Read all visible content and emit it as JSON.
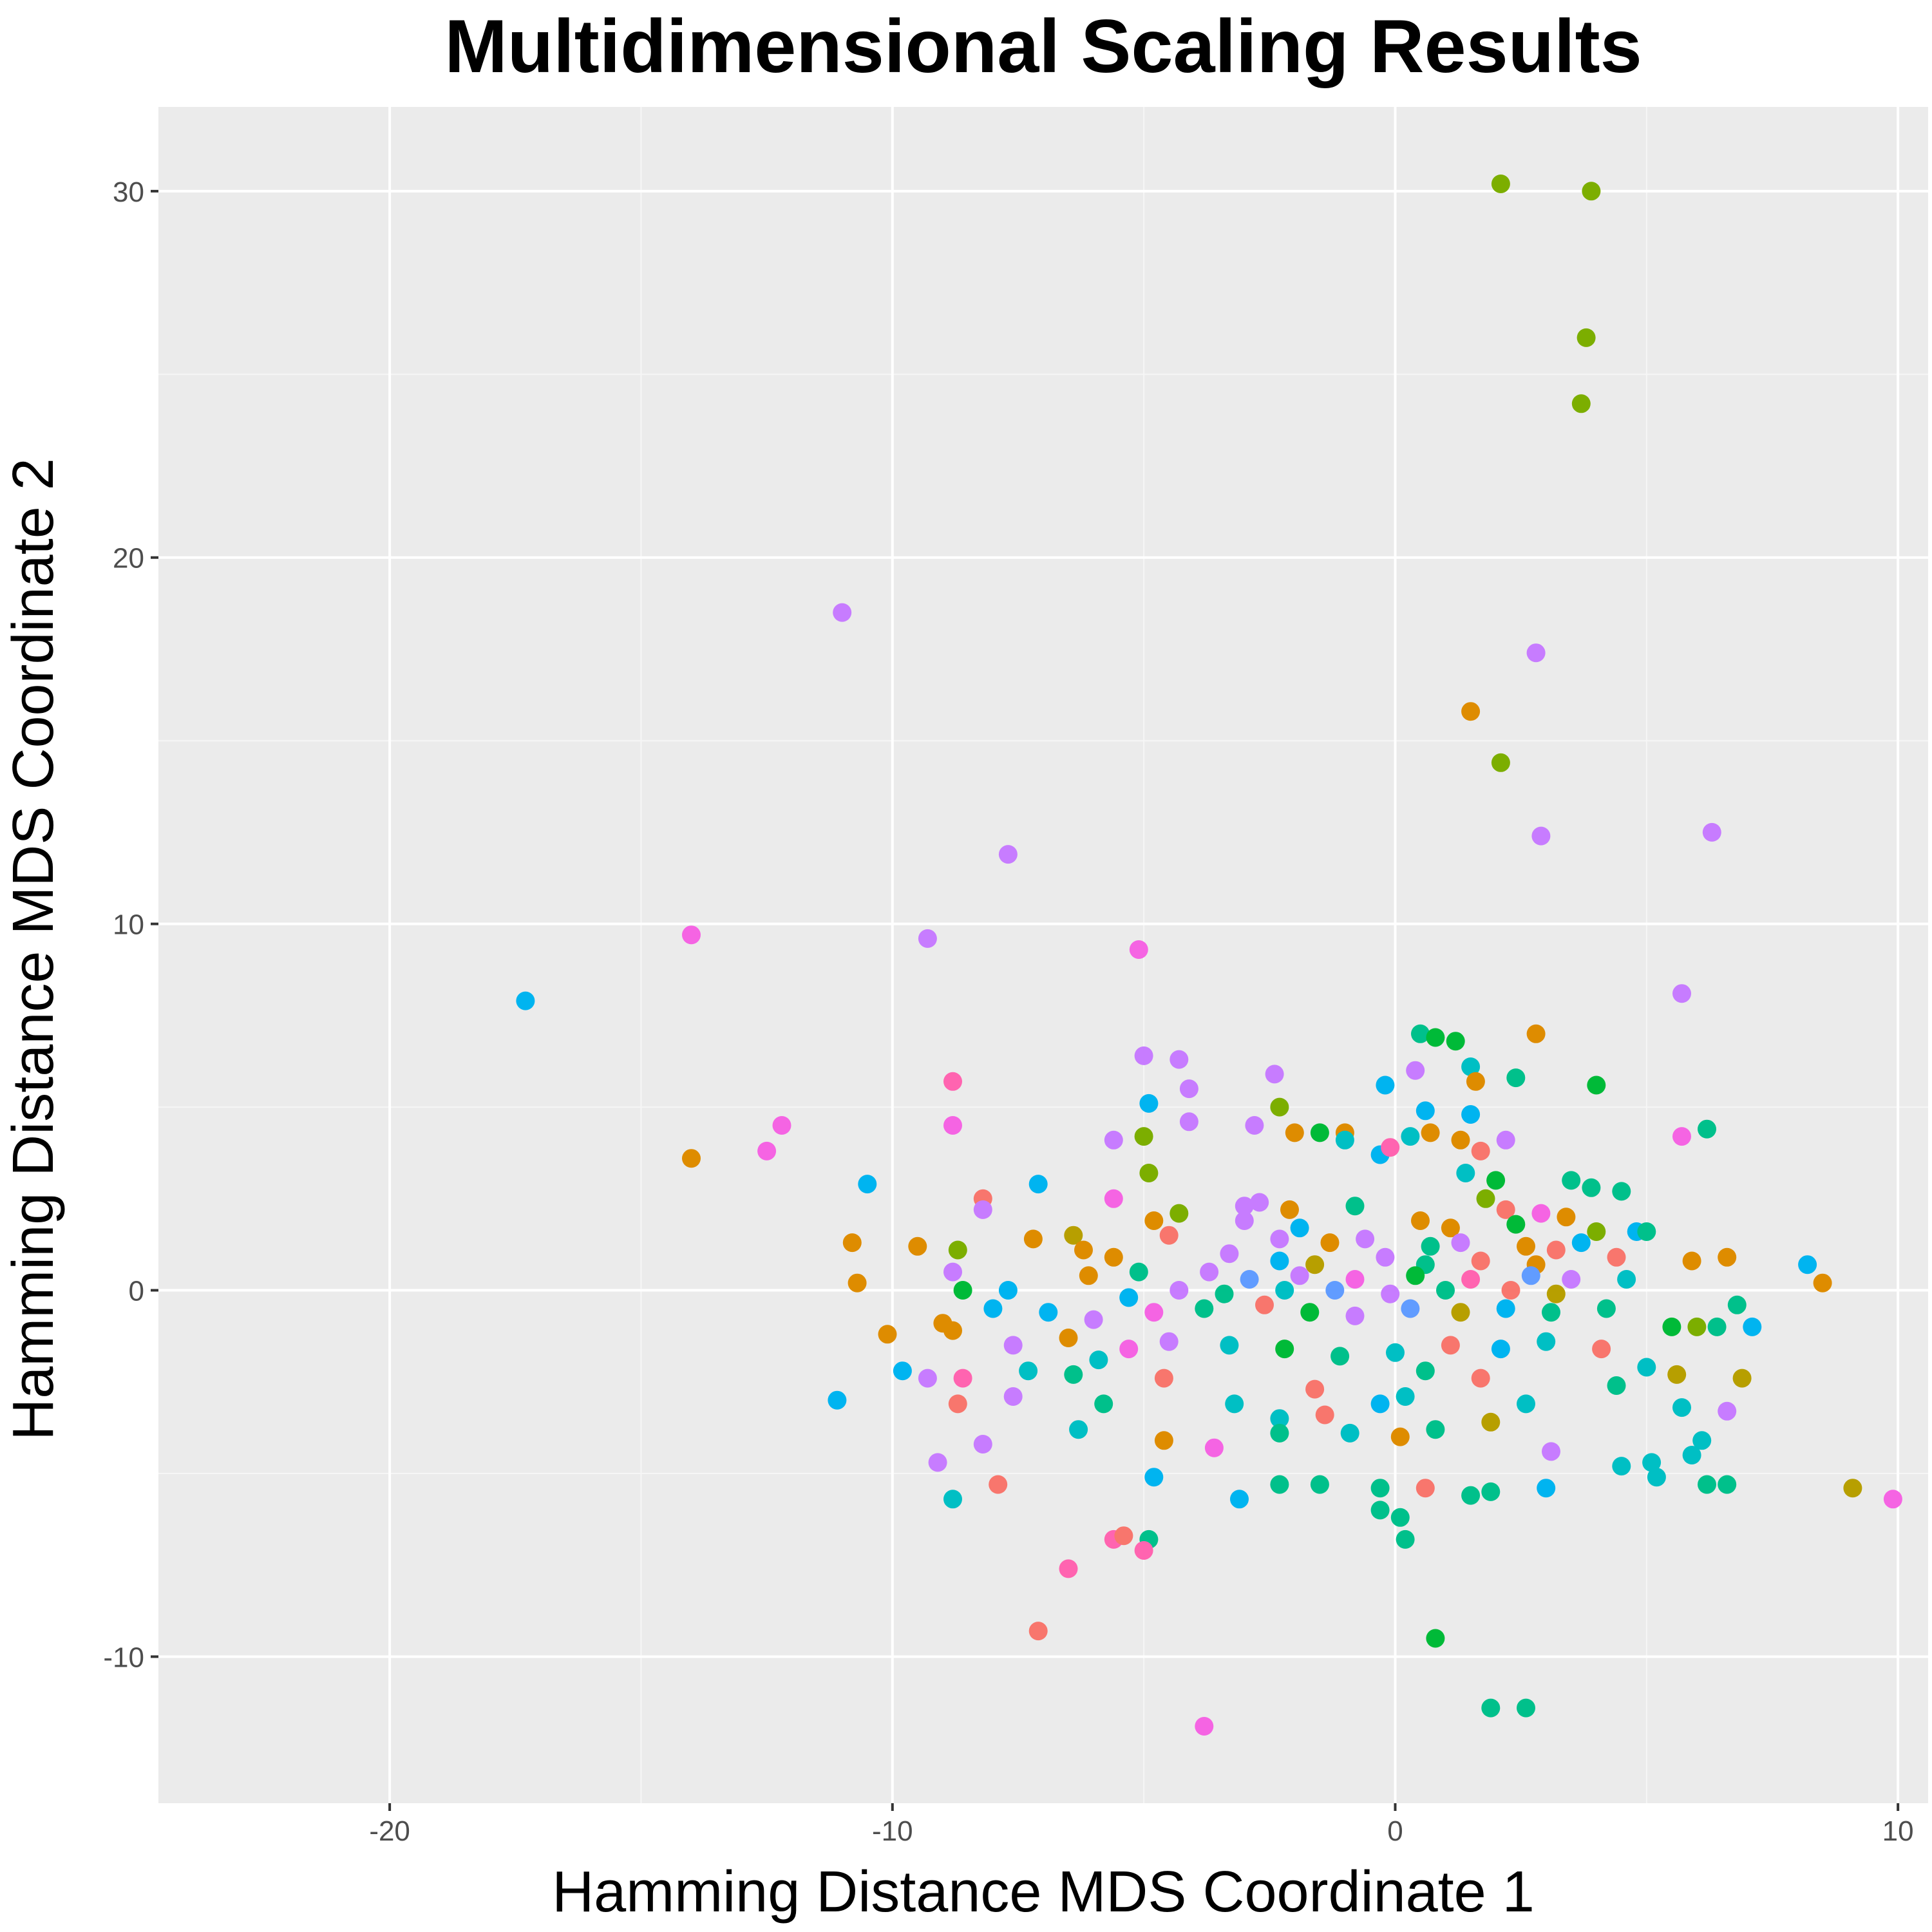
{
  "chart_data": {
    "type": "scatter",
    "title": "Multidimensional Scaling Results",
    "xlabel": "Hamming Distance MDS Coordinate 1",
    "ylabel": "Hamming Distance MDS Coordinate 2",
    "xlim": [
      -24.6,
      10.6
    ],
    "ylim": [
      -14.0,
      32.3
    ],
    "x_ticks": [
      -20,
      -10,
      0,
      10
    ],
    "x_tick_labels": [
      "-20",
      "-10",
      "0",
      "10"
    ],
    "y_ticks": [
      -10,
      0,
      10,
      20,
      30
    ],
    "y_tick_labels": [
      "-10",
      "0",
      "10",
      "20",
      "30"
    ],
    "grid": true,
    "legend": "none",
    "colors": {
      "panel_background": "#ebebeb",
      "grid_major": "#ffffff",
      "grid_minor": "#f6f6f6",
      "series_palette": [
        "#F8766D",
        "#DE8C00",
        "#B79F00",
        "#7CAE00",
        "#00BA38",
        "#00C08B",
        "#00BFC4",
        "#00B4F0",
        "#619CFF",
        "#C77CFF",
        "#F564E3",
        "#FF64B0"
      ]
    },
    "points": [
      [
        2.1,
        30.2,
        3
      ],
      [
        3.9,
        30.0,
        3
      ],
      [
        3.8,
        26.0,
        3
      ],
      [
        3.7,
        24.2,
        3
      ],
      [
        -11.0,
        18.5,
        9
      ],
      [
        2.8,
        17.4,
        9
      ],
      [
        1.5,
        15.8,
        1
      ],
      [
        2.1,
        14.4,
        3
      ],
      [
        2.9,
        12.4,
        9
      ],
      [
        6.3,
        12.5,
        9
      ],
      [
        -7.7,
        11.9,
        9
      ],
      [
        -9.3,
        9.6,
        9
      ],
      [
        -14.0,
        9.7,
        10
      ],
      [
        -5.1,
        9.3,
        10
      ],
      [
        -17.3,
        7.9,
        7
      ],
      [
        5.7,
        8.1,
        9
      ],
      [
        0.5,
        7.0,
        5
      ],
      [
        0.8,
        6.9,
        4
      ],
      [
        1.2,
        6.8,
        4
      ],
      [
        2.8,
        7.0,
        1
      ],
      [
        -5.0,
        6.4,
        9
      ],
      [
        -4.3,
        6.3,
        9
      ],
      [
        -2.4,
        5.9,
        9
      ],
      [
        0.4,
        6.0,
        9
      ],
      [
        1.5,
        6.1,
        6
      ],
      [
        2.4,
        5.8,
        5
      ],
      [
        -8.8,
        5.7,
        11
      ],
      [
        -4.1,
        5.5,
        9
      ],
      [
        -0.2,
        5.6,
        7
      ],
      [
        1.6,
        5.7,
        1
      ],
      [
        4.0,
        5.6,
        4
      ],
      [
        -4.9,
        5.1,
        7
      ],
      [
        -2.3,
        5.0,
        3
      ],
      [
        0.6,
        4.9,
        7
      ],
      [
        1.5,
        4.8,
        7
      ],
      [
        -12.2,
        4.5,
        10
      ],
      [
        -8.8,
        4.5,
        10
      ],
      [
        -4.1,
        4.6,
        9
      ],
      [
        -2.8,
        4.5,
        9
      ],
      [
        -2.0,
        4.3,
        1
      ],
      [
        -1.5,
        4.3,
        4
      ],
      [
        -1.0,
        4.3,
        1
      ],
      [
        -5.0,
        4.2,
        3
      ],
      [
        -5.6,
        4.1,
        9
      ],
      [
        -1.0,
        4.1,
        6
      ],
      [
        0.3,
        4.2,
        6
      ],
      [
        0.7,
        4.3,
        1
      ],
      [
        2.2,
        4.1,
        9
      ],
      [
        5.7,
        4.2,
        10
      ],
      [
        6.2,
        4.4,
        5
      ],
      [
        -14.0,
        3.6,
        1
      ],
      [
        -12.5,
        3.8,
        10
      ],
      [
        -0.3,
        3.7,
        7
      ],
      [
        -0.1,
        3.9,
        11
      ],
      [
        1.3,
        4.1,
        1
      ],
      [
        -4.9,
        3.2,
        3
      ],
      [
        1.4,
        3.2,
        6
      ],
      [
        1.7,
        3.8,
        0
      ],
      [
        -10.5,
        2.9,
        7
      ],
      [
        -7.1,
        2.9,
        7
      ],
      [
        2.0,
        3.0,
        4
      ],
      [
        3.5,
        3.0,
        5
      ],
      [
        3.9,
        2.8,
        5
      ],
      [
        4.5,
        2.7,
        5
      ],
      [
        -8.2,
        2.5,
        0
      ],
      [
        -5.6,
        2.5,
        10
      ],
      [
        -3.0,
        2.3,
        9
      ],
      [
        -2.7,
        2.4,
        9
      ],
      [
        -2.1,
        2.2,
        1
      ],
      [
        -0.8,
        2.3,
        5
      ],
      [
        1.8,
        2.5,
        3
      ],
      [
        2.2,
        2.2,
        0
      ],
      [
        2.9,
        2.1,
        10
      ],
      [
        3.4,
        2.0,
        1
      ],
      [
        -8.2,
        2.2,
        9
      ],
      [
        -4.3,
        2.1,
        3
      ],
      [
        -3.0,
        1.9,
        9
      ],
      [
        -1.9,
        1.7,
        7
      ],
      [
        0.5,
        1.9,
        1
      ],
      [
        1.1,
        1.7,
        1
      ],
      [
        2.4,
        1.8,
        4
      ],
      [
        4.0,
        1.6,
        3
      ],
      [
        4.8,
        1.6,
        7
      ],
      [
        5.0,
        1.6,
        5
      ],
      [
        -10.8,
        1.3,
        1
      ],
      [
        -9.5,
        1.2,
        1
      ],
      [
        -7.2,
        1.4,
        1
      ],
      [
        -6.4,
        1.5,
        2
      ],
      [
        -4.8,
        1.9,
        1
      ],
      [
        -4.5,
        1.5,
        0
      ],
      [
        -2.3,
        1.4,
        9
      ],
      [
        -1.3,
        1.3,
        1
      ],
      [
        -0.6,
        1.4,
        9
      ],
      [
        0.7,
        1.2,
        5
      ],
      [
        1.3,
        1.3,
        9
      ],
      [
        2.6,
        1.2,
        1
      ],
      [
        3.2,
        1.1,
        0
      ],
      [
        3.7,
        1.3,
        7
      ],
      [
        -8.7,
        1.1,
        3
      ],
      [
        -6.2,
        1.1,
        1
      ],
      [
        -5.6,
        0.9,
        1
      ],
      [
        -3.3,
        1.0,
        9
      ],
      [
        -2.3,
        0.8,
        7
      ],
      [
        -1.6,
        0.7,
        2
      ],
      [
        -0.2,
        0.9,
        9
      ],
      [
        0.6,
        0.7,
        5
      ],
      [
        1.7,
        0.8,
        0
      ],
      [
        2.8,
        0.7,
        1
      ],
      [
        4.4,
        0.9,
        0
      ],
      [
        5.9,
        0.8,
        1
      ],
      [
        6.6,
        0.9,
        1
      ],
      [
        8.2,
        0.7,
        7
      ],
      [
        -10.7,
        0.2,
        1
      ],
      [
        -8.8,
        0.5,
        9
      ],
      [
        -6.1,
        0.4,
        1
      ],
      [
        -5.1,
        0.5,
        5
      ],
      [
        -3.7,
        0.5,
        9
      ],
      [
        -2.9,
        0.3,
        8
      ],
      [
        -1.9,
        0.4,
        9
      ],
      [
        -0.8,
        0.3,
        10
      ],
      [
        0.4,
        0.4,
        4
      ],
      [
        1.5,
        0.3,
        11
      ],
      [
        2.7,
        0.4,
        8
      ],
      [
        3.5,
        0.3,
        9
      ],
      [
        4.6,
        0.3,
        6
      ],
      [
        8.5,
        0.2,
        1
      ],
      [
        -8.6,
        0.0,
        4
      ],
      [
        -7.7,
        0.0,
        7
      ],
      [
        -5.3,
        -0.2,
        7
      ],
      [
        -4.3,
        0.0,
        9
      ],
      [
        -3.4,
        -0.1,
        5
      ],
      [
        -2.2,
        0.0,
        6
      ],
      [
        -1.2,
        0.0,
        8
      ],
      [
        -0.1,
        -0.1,
        9
      ],
      [
        1.0,
        0.0,
        5
      ],
      [
        2.3,
        0.0,
        0
      ],
      [
        3.2,
        -0.1,
        2
      ],
      [
        -10.1,
        -1.2,
        1
      ],
      [
        -9.0,
        -0.9,
        1
      ],
      [
        -8.0,
        -0.5,
        7
      ],
      [
        -6.9,
        -0.6,
        7
      ],
      [
        -6.0,
        -0.8,
        9
      ],
      [
        -4.8,
        -0.6,
        10
      ],
      [
        -3.8,
        -0.5,
        5
      ],
      [
        -2.6,
        -0.4,
        0
      ],
      [
        -1.7,
        -0.6,
        4
      ],
      [
        -0.8,
        -0.7,
        9
      ],
      [
        0.3,
        -0.5,
        8
      ],
      [
        1.3,
        -0.6,
        2
      ],
      [
        2.2,
        -0.5,
        7
      ],
      [
        3.1,
        -0.6,
        5
      ],
      [
        4.2,
        -0.5,
        5
      ],
      [
        5.5,
        -1.0,
        4
      ],
      [
        6.0,
        -1.0,
        3
      ],
      [
        6.4,
        -1.0,
        5
      ],
      [
        6.8,
        -0.4,
        5
      ],
      [
        7.1,
        -1.0,
        7
      ],
      [
        -9.8,
        -2.2,
        7
      ],
      [
        -9.3,
        -2.4,
        9
      ],
      [
        -8.8,
        -1.1,
        1
      ],
      [
        -7.6,
        -1.5,
        9
      ],
      [
        -6.5,
        -1.3,
        1
      ],
      [
        -5.9,
        -1.9,
        6
      ],
      [
        -5.3,
        -1.6,
        10
      ],
      [
        -4.5,
        -1.4,
        9
      ],
      [
        -3.3,
        -1.5,
        6
      ],
      [
        -2.2,
        -1.6,
        4
      ],
      [
        -1.1,
        -1.8,
        5
      ],
      [
        0.0,
        -1.7,
        6
      ],
      [
        1.1,
        -1.5,
        0
      ],
      [
        2.1,
        -1.6,
        7
      ],
      [
        3.0,
        -1.4,
        6
      ],
      [
        4.1,
        -1.6,
        0
      ],
      [
        5.0,
        -2.1,
        6
      ],
      [
        5.6,
        -2.3,
        2
      ],
      [
        6.9,
        -2.4,
        2
      ],
      [
        -11.1,
        -3.0,
        7
      ],
      [
        -8.6,
        -2.4,
        11
      ],
      [
        -8.7,
        -3.1,
        0
      ],
      [
        -7.6,
        -2.9,
        9
      ],
      [
        -7.3,
        -2.2,
        6
      ],
      [
        -6.4,
        -2.3,
        5
      ],
      [
        -5.8,
        -3.1,
        5
      ],
      [
        -4.6,
        -2.4,
        0
      ],
      [
        -3.2,
        -3.1,
        6
      ],
      [
        -2.3,
        -3.5,
        6
      ],
      [
        -1.6,
        -2.7,
        0
      ],
      [
        -0.3,
        -3.1,
        7
      ],
      [
        0.2,
        -2.9,
        6
      ],
      [
        0.6,
        -2.2,
        5
      ],
      [
        1.7,
        -2.4,
        0
      ],
      [
        2.6,
        -3.1,
        6
      ],
      [
        4.4,
        -2.6,
        5
      ],
      [
        5.7,
        -3.2,
        6
      ],
      [
        6.6,
        -3.3,
        9
      ],
      [
        -9.1,
        -4.7,
        9
      ],
      [
        -8.2,
        -4.2,
        9
      ],
      [
        -6.3,
        -3.8,
        6
      ],
      [
        -4.6,
        -4.1,
        1
      ],
      [
        -3.6,
        -4.3,
        10
      ],
      [
        -2.3,
        -3.9,
        5
      ],
      [
        -1.4,
        -3.4,
        0
      ],
      [
        -0.9,
        -3.9,
        6
      ],
      [
        0.1,
        -4.0,
        1
      ],
      [
        0.8,
        -3.8,
        5
      ],
      [
        1.9,
        -3.6,
        2
      ],
      [
        3.1,
        -4.4,
        9
      ],
      [
        4.5,
        -4.8,
        6
      ],
      [
        5.1,
        -4.7,
        6
      ],
      [
        5.9,
        -4.5,
        6
      ],
      [
        6.1,
        -4.1,
        6
      ],
      [
        -8.8,
        -5.7,
        6
      ],
      [
        -7.9,
        -5.3,
        0
      ],
      [
        -4.8,
        -5.1,
        7
      ],
      [
        -3.1,
        -5.7,
        7
      ],
      [
        -2.3,
        -5.3,
        5
      ],
      [
        -1.5,
        -5.3,
        5
      ],
      [
        -0.3,
        -5.4,
        5
      ],
      [
        0.6,
        -5.4,
        0
      ],
      [
        1.5,
        -5.6,
        5
      ],
      [
        1.9,
        -5.5,
        5
      ],
      [
        3.0,
        -5.4,
        7
      ],
      [
        5.2,
        -5.1,
        6
      ],
      [
        6.2,
        -5.3,
        5
      ],
      [
        6.6,
        -5.3,
        5
      ],
      [
        9.1,
        -5.4,
        2
      ],
      [
        9.9,
        -5.7,
        10
      ],
      [
        -5.6,
        -6.8,
        11
      ],
      [
        -5.4,
        -6.7,
        0
      ],
      [
        -4.9,
        -6.8,
        5
      ],
      [
        -5.0,
        -7.1,
        11
      ],
      [
        -0.3,
        -6.0,
        5
      ],
      [
        0.1,
        -6.2,
        5
      ],
      [
        0.2,
        -6.8,
        5
      ],
      [
        -6.5,
        -7.6,
        11
      ],
      [
        -7.1,
        -9.3,
        0
      ],
      [
        0.8,
        -9.5,
        4
      ],
      [
        -3.8,
        -11.9,
        10
      ],
      [
        1.9,
        -11.4,
        5
      ],
      [
        2.6,
        -11.4,
        5
      ]
    ]
  }
}
